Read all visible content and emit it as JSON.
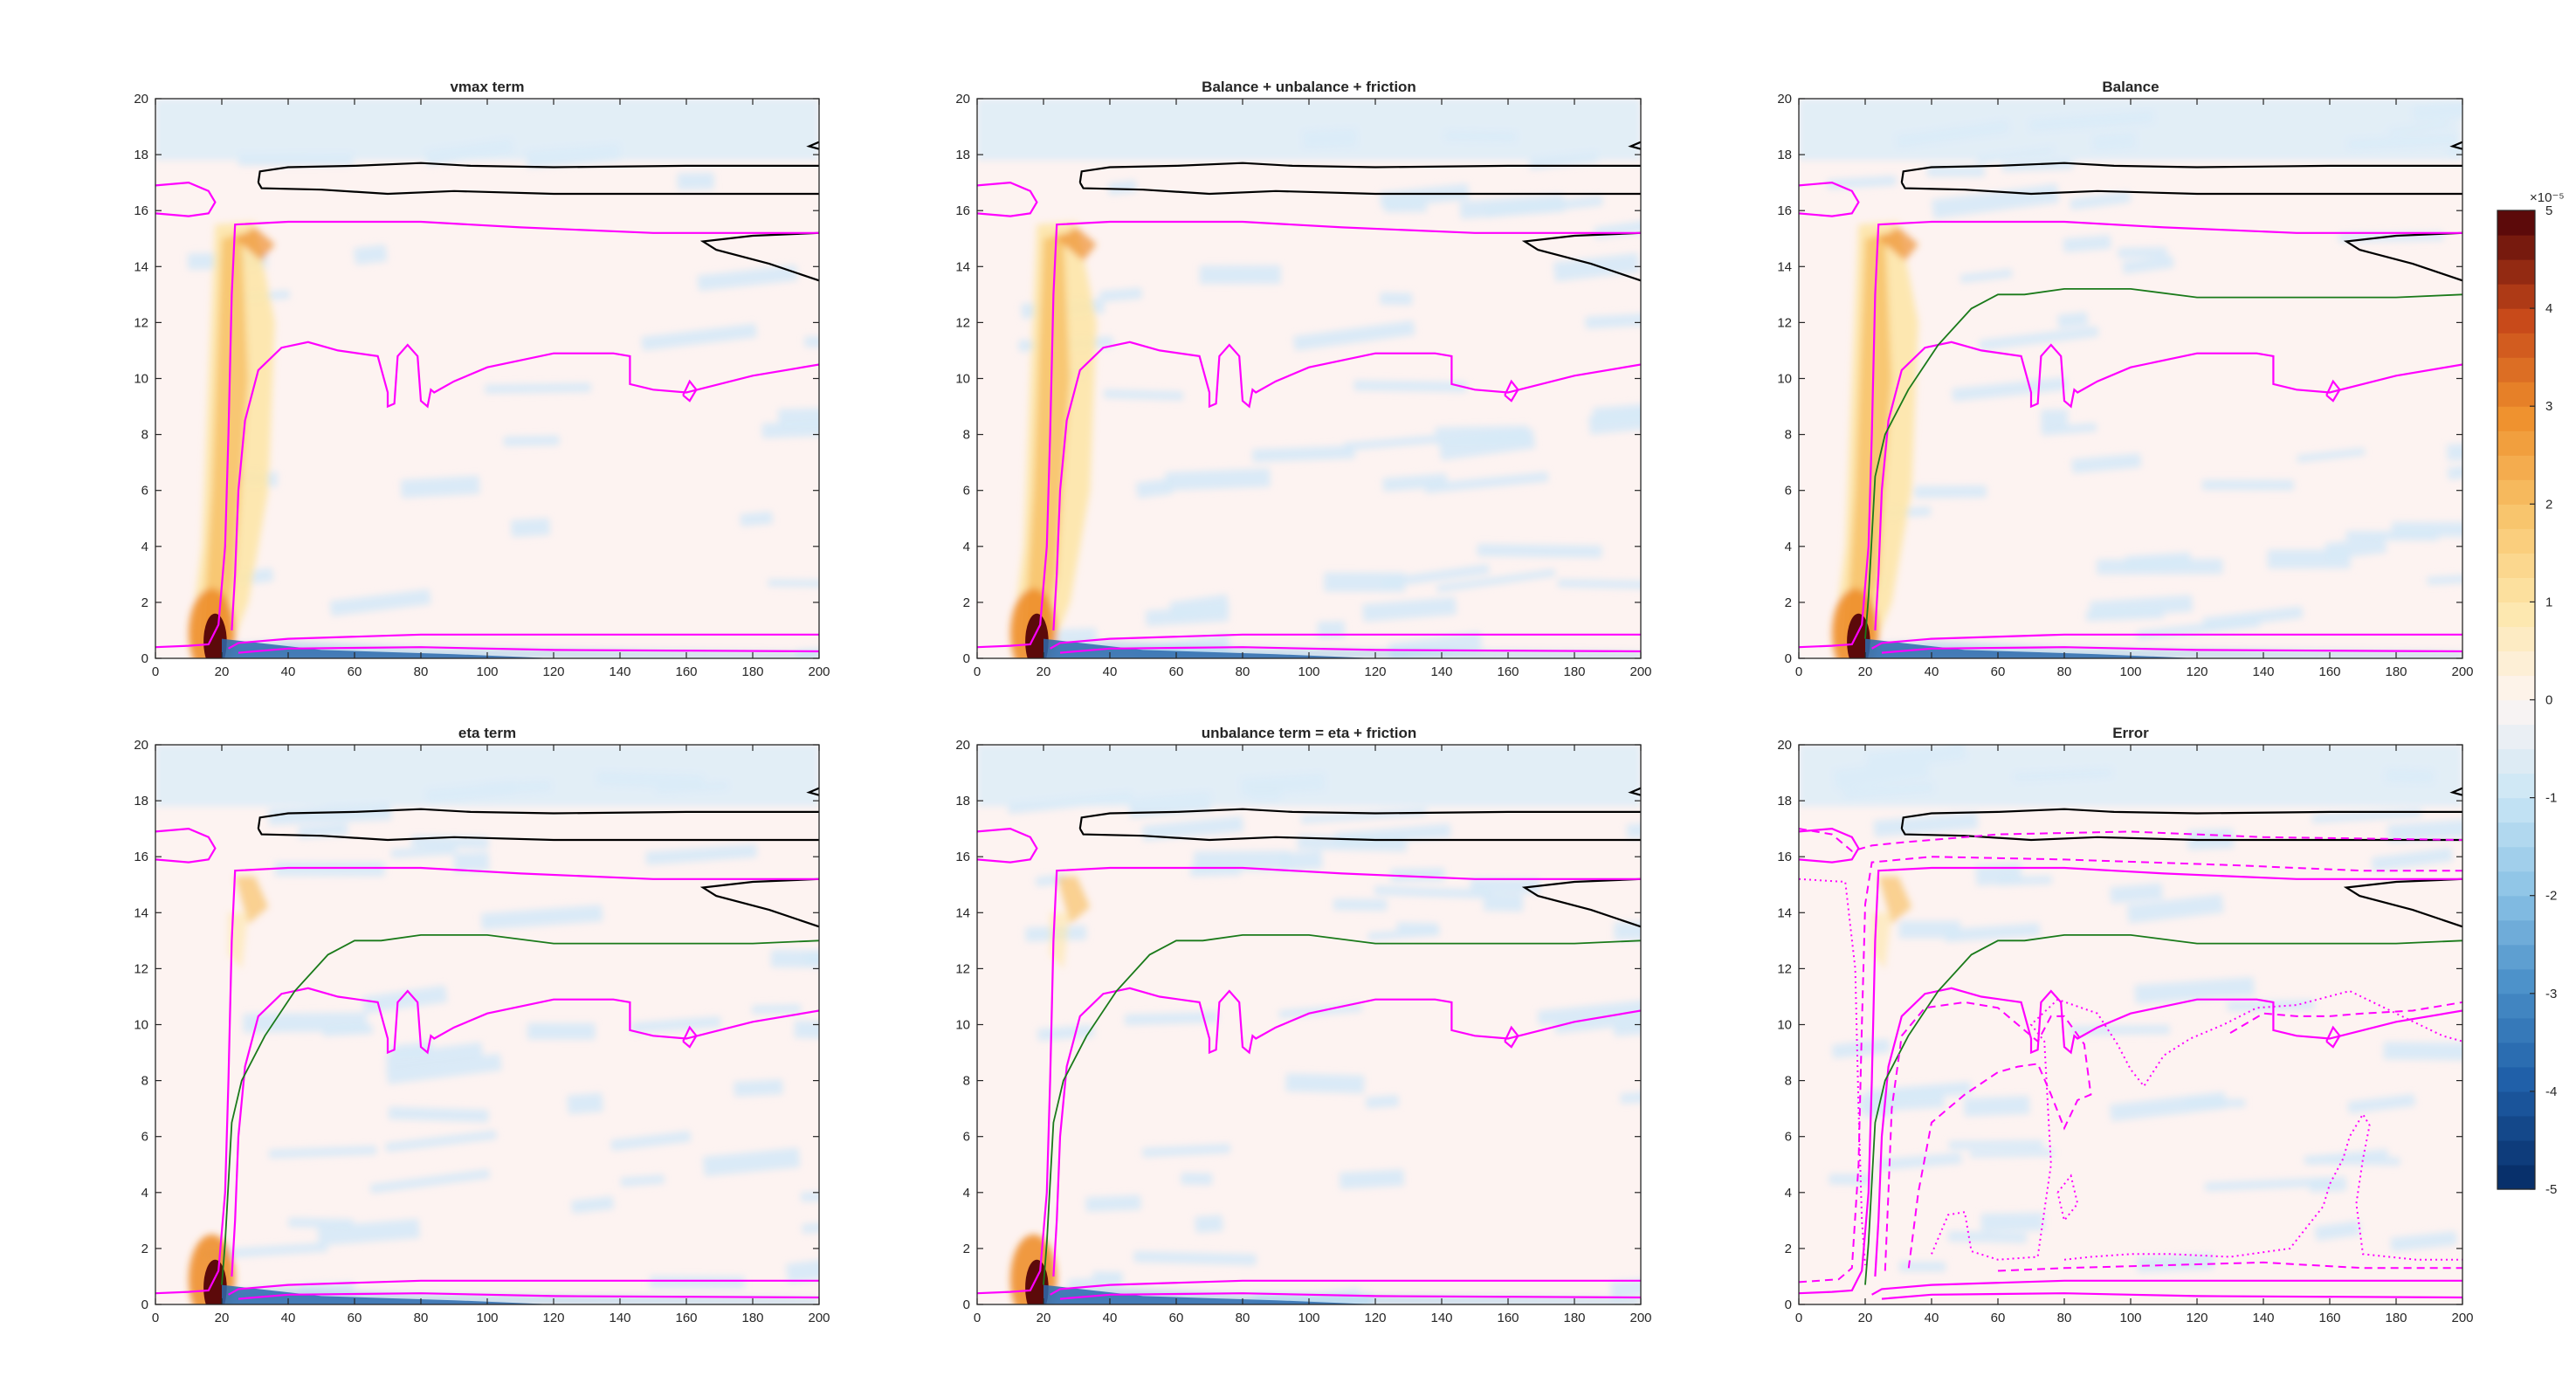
{
  "chart_data": [
    {
      "type": "heatmap",
      "panel": "top-left",
      "title": "vmax term",
      "xlim": [
        0,
        200
      ],
      "ylim": [
        0,
        20
      ],
      "xticks": [
        0,
        20,
        40,
        60,
        80,
        100,
        120,
        140,
        160,
        180,
        200
      ],
      "yticks": [
        0,
        2,
        4,
        6,
        8,
        10,
        12,
        14,
        16,
        18,
        20
      ],
      "green_contour": false,
      "dashed_contours": false
    },
    {
      "type": "heatmap",
      "panel": "top-middle",
      "title": "Balance + unbalance + friction",
      "xlim": [
        0,
        200
      ],
      "ylim": [
        0,
        20
      ],
      "xticks": [
        0,
        20,
        40,
        60,
        80,
        100,
        120,
        140,
        160,
        180,
        200
      ],
      "yticks": [
        0,
        2,
        4,
        6,
        8,
        10,
        12,
        14,
        16,
        18,
        20
      ],
      "green_contour": false,
      "dashed_contours": false
    },
    {
      "type": "heatmap",
      "panel": "top-right",
      "title": "Balance",
      "xlim": [
        0,
        200
      ],
      "ylim": [
        0,
        20
      ],
      "xticks": [
        0,
        20,
        40,
        60,
        80,
        100,
        120,
        140,
        160,
        180,
        200
      ],
      "yticks": [
        0,
        2,
        4,
        6,
        8,
        10,
        12,
        14,
        16,
        18,
        20
      ],
      "green_contour": true,
      "dashed_contours": false
    },
    {
      "type": "heatmap",
      "panel": "bottom-left",
      "title": "eta term",
      "xlim": [
        0,
        200
      ],
      "ylim": [
        0,
        20
      ],
      "xticks": [
        0,
        20,
        40,
        60,
        80,
        100,
        120,
        140,
        160,
        180,
        200
      ],
      "yticks": [
        0,
        2,
        4,
        6,
        8,
        10,
        12,
        14,
        16,
        18,
        20
      ],
      "green_contour": true,
      "dashed_contours": false
    },
    {
      "type": "heatmap",
      "panel": "bottom-middle",
      "title": "unbalance term = eta + friction",
      "xlim": [
        0,
        200
      ],
      "ylim": [
        0,
        20
      ],
      "xticks": [
        0,
        20,
        40,
        60,
        80,
        100,
        120,
        140,
        160,
        180,
        200
      ],
      "yticks": [
        0,
        2,
        4,
        6,
        8,
        10,
        12,
        14,
        16,
        18,
        20
      ],
      "green_contour": true,
      "dashed_contours": false
    },
    {
      "type": "heatmap",
      "panel": "bottom-right",
      "title": "Error",
      "xlim": [
        0,
        200
      ],
      "ylim": [
        0,
        20
      ],
      "xticks": [
        0,
        20,
        40,
        60,
        80,
        100,
        120,
        140,
        160,
        180,
        200
      ],
      "yticks": [
        0,
        2,
        4,
        6,
        8,
        10,
        12,
        14,
        16,
        18,
        20
      ],
      "green_contour": true,
      "dashed_contours": true
    }
  ],
  "colorbar": {
    "range": [
      -5,
      5
    ],
    "ticks": [
      5,
      4,
      3,
      2,
      1,
      0,
      -1,
      -2,
      -3,
      -4,
      -5
    ],
    "exponent_label": "×10⁻⁵",
    "colors": [
      "#08306b",
      "#1f5fa8",
      "#4a8fc8",
      "#8cc3e6",
      "#cbe6f5",
      "#fdf5f3",
      "#fde6a8",
      "#f8c268",
      "#ee8f2c",
      "#c7481a",
      "#5c0a0a"
    ]
  },
  "contour_colors": {
    "magenta": "#ff00ff",
    "black": "#000000",
    "green": "#1a7a1a"
  }
}
